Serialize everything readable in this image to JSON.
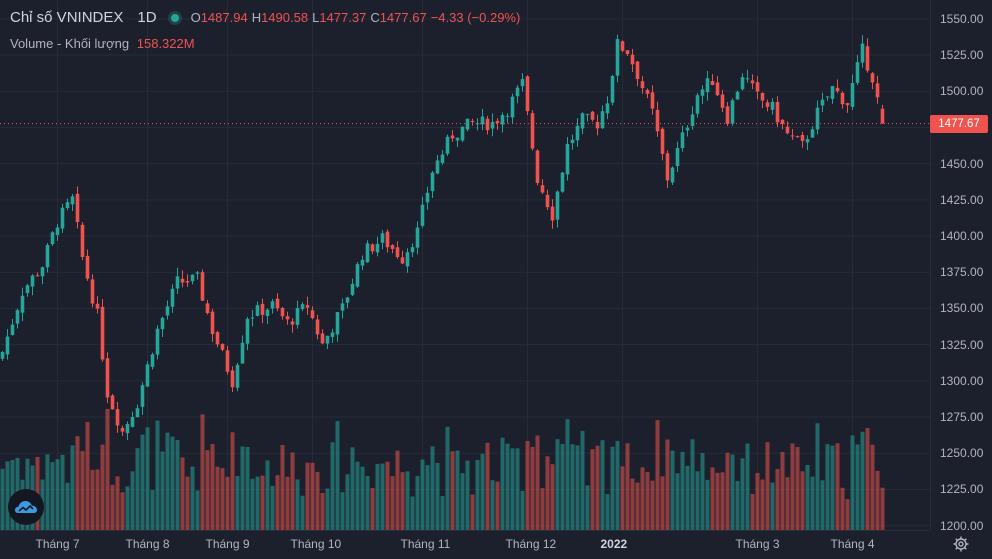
{
  "legend": {
    "symbol": "Chỉ số VNINDEX",
    "interval": "1D",
    "open_key": "O",
    "open": "1487.94",
    "high_key": "H",
    "high": "1490.58",
    "low_key": "L",
    "low": "1477.37",
    "close_key": "C",
    "close": "1477.67",
    "change": "−4.33 (−0.29%)",
    "volume_label": "Volume - Khối lượng",
    "volume": "158.322M"
  },
  "last_price": "1477.67",
  "icons": {
    "status": "dot-icon",
    "logo": "tradingview-logo-icon",
    "settings": "gear-icon"
  },
  "colors": {
    "up": "#26a69a",
    "down": "#ef5350",
    "background": "#1c1f2c"
  },
  "chart_data": {
    "type": "candlestick",
    "title": "Chỉ số VNINDEX",
    "interval": "1D",
    "y_ticks": [
      1200,
      1225,
      1250,
      1275,
      1300,
      1325,
      1350,
      1375,
      1400,
      1425,
      1450,
      1475,
      1500,
      1525,
      1550
    ],
    "y_tick_labels": [
      "1200.00",
      "1225.00",
      "1250.00",
      "1275.00",
      "1300.00",
      "1325.00",
      "1350.00",
      "1375.00",
      "1400.00",
      "1425.00",
      "1450.00",
      "1475.00",
      "1500.00",
      "1525.00",
      "1550.00"
    ],
    "ylim": [
      1197,
      1563
    ],
    "x_labels": [
      "Tháng 7",
      "Tháng 8",
      "Tháng 9",
      "Tháng 10",
      "Tháng 11",
      "Tháng 12",
      "2022",
      "Tháng 3",
      "Tháng 4"
    ],
    "x_label_bar_index": [
      11,
      29,
      45,
      62,
      84,
      105,
      124,
      151,
      170
    ],
    "grid": true,
    "price_anchors": [
      [
        0,
        1320
      ],
      [
        4,
        1362
      ],
      [
        8,
        1380
      ],
      [
        11,
        1410
      ],
      [
        14,
        1425
      ],
      [
        16,
        1385
      ],
      [
        19,
        1345
      ],
      [
        21,
        1292
      ],
      [
        24,
        1265
      ],
      [
        27,
        1285
      ],
      [
        31,
        1335
      ],
      [
        35,
        1368
      ],
      [
        39,
        1370
      ],
      [
        42,
        1335
      ],
      [
        46,
        1300
      ],
      [
        49,
        1345
      ],
      [
        54,
        1352
      ],
      [
        57,
        1340
      ],
      [
        61,
        1352
      ],
      [
        64,
        1325
      ],
      [
        68,
        1350
      ],
      [
        72,
        1388
      ],
      [
        76,
        1398
      ],
      [
        80,
        1385
      ],
      [
        83,
        1403
      ],
      [
        86,
        1445
      ],
      [
        90,
        1470
      ],
      [
        94,
        1478
      ],
      [
        98,
        1478
      ],
      [
        101,
        1488
      ],
      [
        104,
        1505
      ],
      [
        107,
        1440
      ],
      [
        110,
        1415
      ],
      [
        113,
        1462
      ],
      [
        116,
        1480
      ],
      [
        119,
        1478
      ],
      [
        121,
        1495
      ],
      [
        123,
        1532
      ],
      [
        125,
        1528
      ],
      [
        127,
        1512
      ],
      [
        130,
        1485
      ],
      [
        133,
        1440
      ],
      [
        136,
        1468
      ],
      [
        139,
        1498
      ],
      [
        142,
        1508
      ],
      [
        145,
        1482
      ],
      [
        148,
        1512
      ],
      [
        151,
        1496
      ],
      [
        154,
        1488
      ],
      [
        157,
        1470
      ],
      [
        160,
        1462
      ],
      [
        163,
        1485
      ],
      [
        166,
        1502
      ],
      [
        169,
        1492
      ],
      [
        172,
        1528
      ],
      [
        174,
        1510
      ],
      [
        176,
        1477.67
      ]
    ],
    "volume_range_M": [
      130,
      330
    ]
  }
}
